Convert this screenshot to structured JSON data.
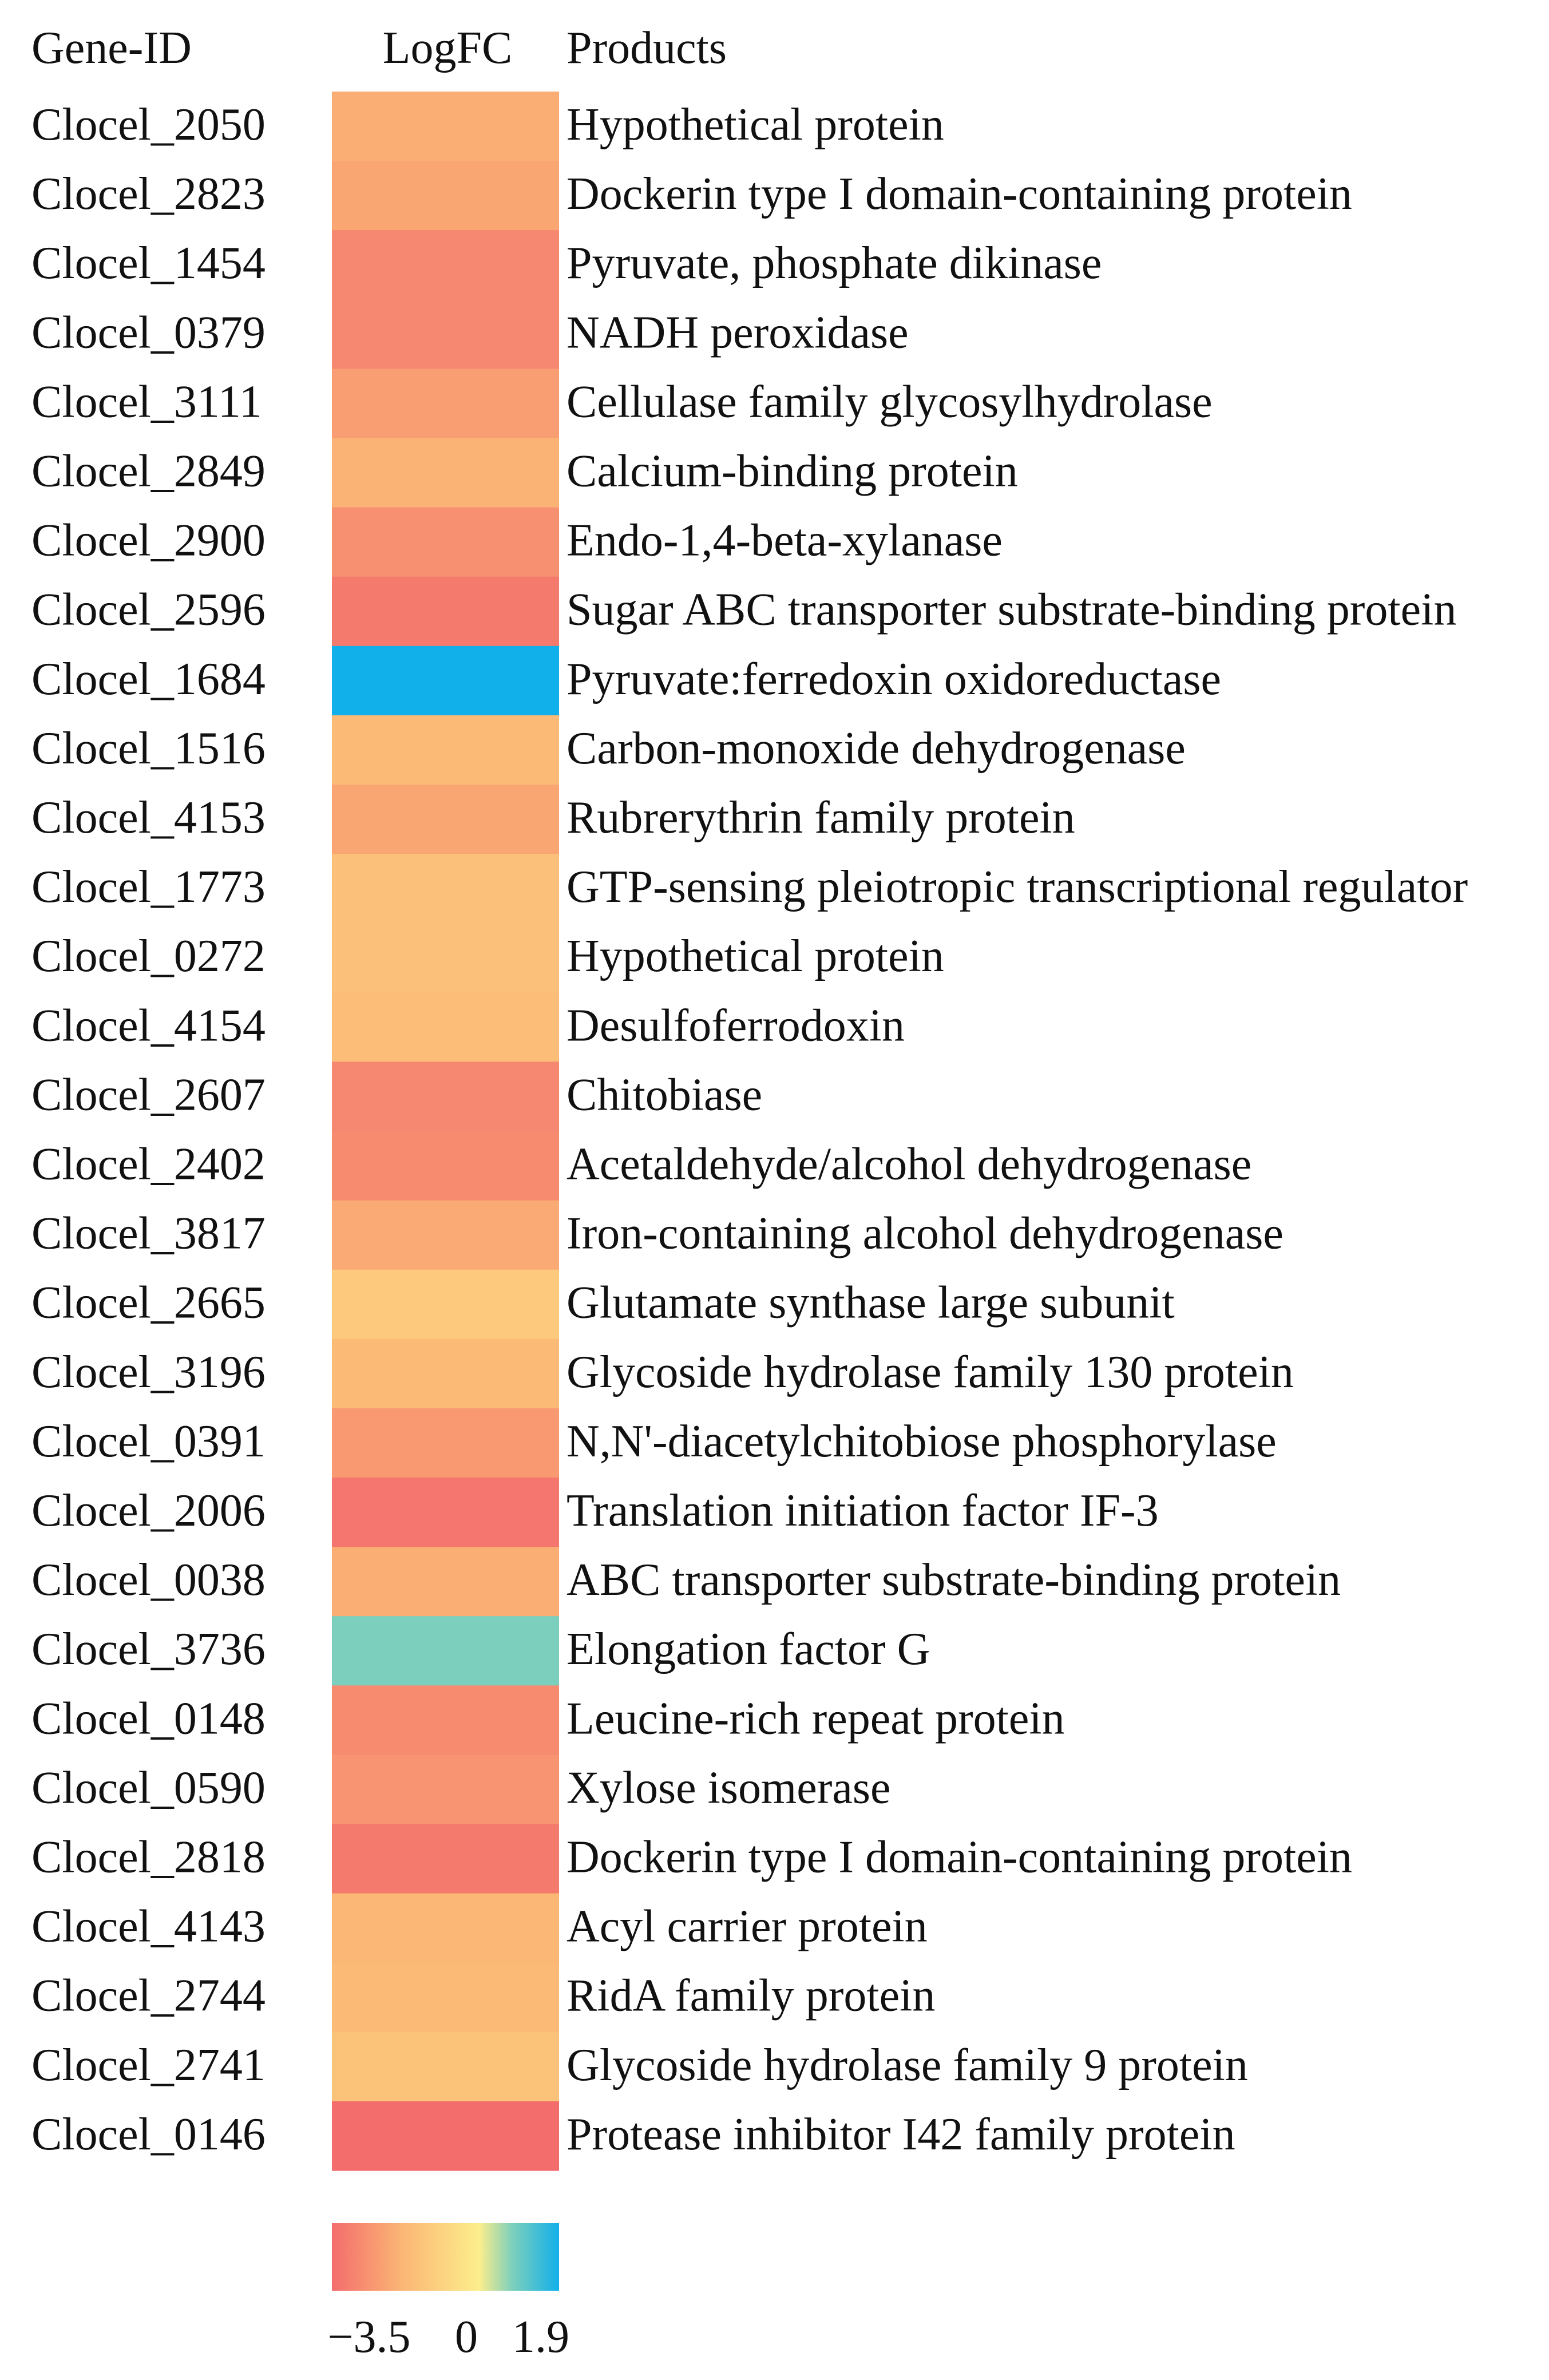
{
  "chart_data": {
    "type": "heatmap",
    "columns": {
      "gene_id": "Gene-ID",
      "logfc": "LogFC",
      "products": "Products"
    },
    "rows": [
      {
        "gene_id": "Clocel_2050",
        "logfc": -2.0,
        "product": "Hypothetical protein"
      },
      {
        "gene_id": "Clocel_2823",
        "logfc": -2.2,
        "product": "Dockerin type I domain-containing protein"
      },
      {
        "gene_id": "Clocel_1454",
        "logfc": -2.9,
        "product": "Pyruvate, phosphate dikinase"
      },
      {
        "gene_id": "Clocel_0379",
        "logfc": -2.9,
        "product": "NADH peroxidase"
      },
      {
        "gene_id": "Clocel_3111",
        "logfc": -2.4,
        "product": "Cellulase family glycosylhydrolase"
      },
      {
        "gene_id": "Clocel_2849",
        "logfc": -1.9,
        "product": "Calcium-binding protein"
      },
      {
        "gene_id": "Clocel_2900",
        "logfc": -2.7,
        "product": "Endo-1,4-beta-xylanase"
      },
      {
        "gene_id": "Clocel_2596",
        "logfc": -3.2,
        "product": "Sugar ABC transporter substrate-binding protein"
      },
      {
        "gene_id": "Clocel_1684",
        "logfc": 1.9,
        "product": "Pyruvate:ferredoxin oxidoreductase"
      },
      {
        "gene_id": "Clocel_1516",
        "logfc": -1.7,
        "product": "Carbon-monoxide dehydrogenase"
      },
      {
        "gene_id": "Clocel_4153",
        "logfc": -2.2,
        "product": "Rubrerythrin family protein"
      },
      {
        "gene_id": "Clocel_1773",
        "logfc": -1.5,
        "product": "GTP-sensing pleiotropic transcriptional regulator"
      },
      {
        "gene_id": "Clocel_0272",
        "logfc": -1.5,
        "product": "Hypothetical protein"
      },
      {
        "gene_id": "Clocel_4154",
        "logfc": -1.6,
        "product": "Desulfoferrodoxin"
      },
      {
        "gene_id": "Clocel_2607",
        "logfc": -2.9,
        "product": "Chitobiase"
      },
      {
        "gene_id": "Clocel_2402",
        "logfc": -2.8,
        "product": "Acetaldehyde/alcohol dehydrogenase"
      },
      {
        "gene_id": "Clocel_3817",
        "logfc": -2.1,
        "product": "Iron-containing alcohol dehydrogenase"
      },
      {
        "gene_id": "Clocel_2665",
        "logfc": -1.2,
        "product": "Glutamate synthase large subunit"
      },
      {
        "gene_id": "Clocel_3196",
        "logfc": -1.7,
        "product": "Glycoside hydrolase family 130 protein"
      },
      {
        "gene_id": "Clocel_0391",
        "logfc": -2.5,
        "product": "N,N'-diacetylchitobiose phosphorylase"
      },
      {
        "gene_id": "Clocel_2006",
        "logfc": -3.3,
        "product": "Translation initiation factor IF-3"
      },
      {
        "gene_id": "Clocel_0038",
        "logfc": -2.0,
        "product": "ABC transporter substrate-binding protein"
      },
      {
        "gene_id": "Clocel_3736",
        "logfc": 0.8,
        "product": "Elongation factor G"
      },
      {
        "gene_id": "Clocel_0148",
        "logfc": -2.8,
        "product": "Leucine-rich repeat protein"
      },
      {
        "gene_id": "Clocel_0590",
        "logfc": -2.6,
        "product": "Xylose isomerase"
      },
      {
        "gene_id": "Clocel_2818",
        "logfc": -3.2,
        "product": "Dockerin type I domain-containing protein"
      },
      {
        "gene_id": "Clocel_4143",
        "logfc": -1.8,
        "product": "Acyl carrier protein"
      },
      {
        "gene_id": "Clocel_2744",
        "logfc": -1.7,
        "product": "RidA family protein"
      },
      {
        "gene_id": "Clocel_2741",
        "logfc": -1.4,
        "product": "Glycoside hydrolase family 9 protein"
      },
      {
        "gene_id": "Clocel_0146",
        "logfc": -3.5,
        "product": "Protease inhibitor I42 family protein"
      }
    ],
    "color_scale": {
      "min": -3.5,
      "mid": 0,
      "max": 1.9,
      "tick_labels": [
        "−3.5",
        "0",
        "1.9"
      ],
      "stops": [
        {
          "value": -3.5,
          "color": "#f46d6d"
        },
        {
          "value": -1.8,
          "color": "#fbb775"
        },
        {
          "value": 0,
          "color": "#fdee8c"
        },
        {
          "value": 0.8,
          "color": "#7bcfbc"
        },
        {
          "value": 1.9,
          "color": "#12b0ea"
        }
      ]
    }
  }
}
